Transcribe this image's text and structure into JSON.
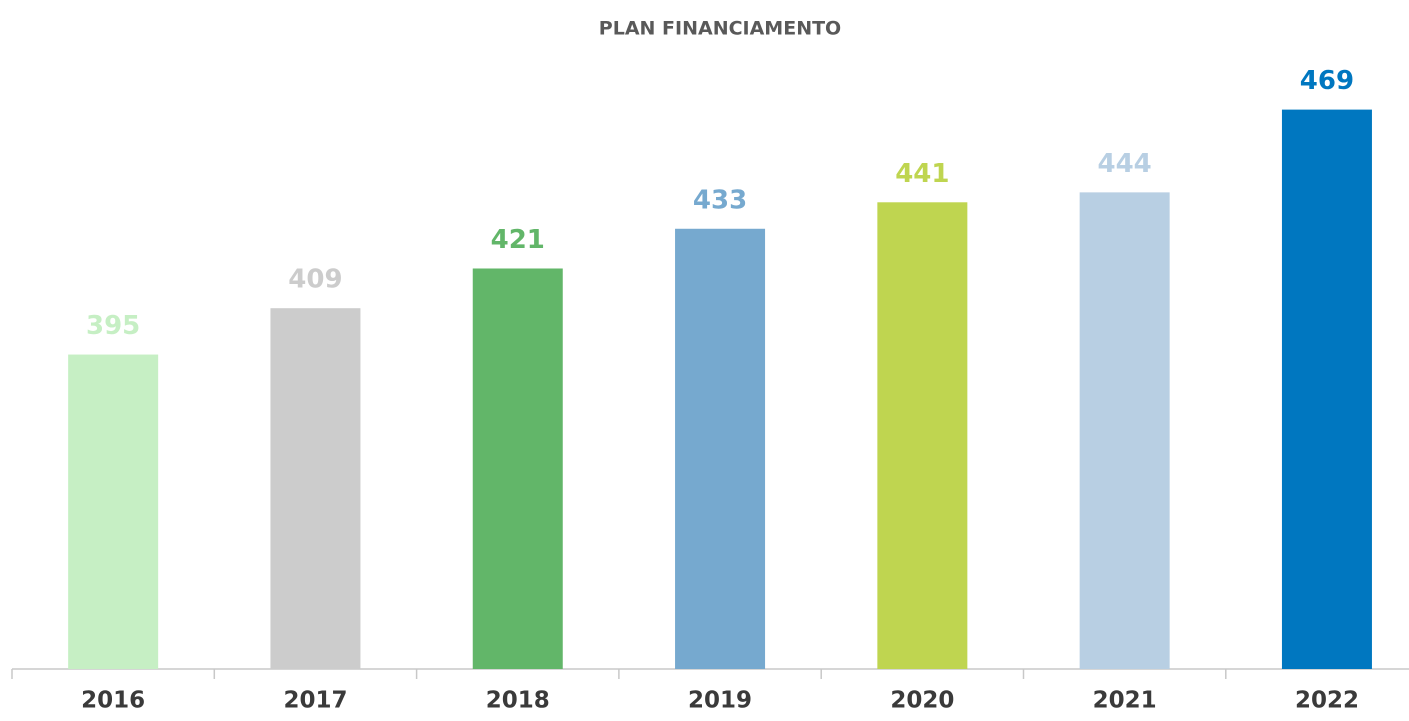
{
  "chart_data": {
    "type": "bar",
    "title": "PLAN FINANCIAMENTO",
    "categories": [
      "2016",
      "2017",
      "2018",
      "2019",
      "2020",
      "2021",
      "2022"
    ],
    "values": [
      395,
      409,
      421,
      433,
      441,
      444,
      469
    ],
    "colors": [
      "#c6efc4",
      "#cccccc",
      "#62b669",
      "#76a9cf",
      "#bfd550",
      "#b8cfe3",
      "#0077c0"
    ],
    "ylim": [
      300,
      500
    ],
    "grid": false
  }
}
